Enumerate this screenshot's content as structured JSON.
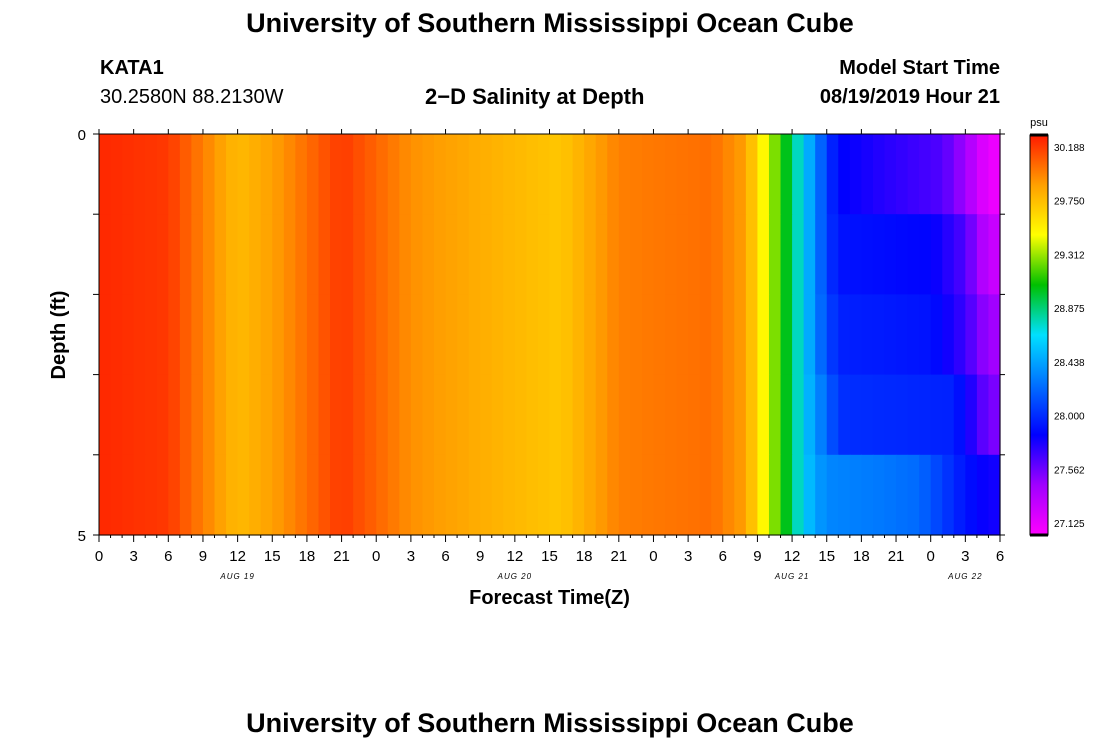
{
  "header": {
    "title": "University of Southern Mississippi Ocean Cube",
    "station": "KATA1",
    "coordinates": "30.2580N 88.2130W",
    "subtitle": "2−D Salinity at Depth",
    "model_start_label": "Model Start Time",
    "model_start_value": "08/19/2019 Hour 21"
  },
  "footer": {
    "title": "University of Southern Mississippi Ocean Cube"
  },
  "colors": {
    "palette": [
      "#ff00ff",
      "#a000ff",
      "#0000ff",
      "#0070ff",
      "#00e0ff",
      "#00c000",
      "#ffff00",
      "#ffa000",
      "#ff1a00"
    ]
  },
  "chart_data": {
    "type": "heatmap",
    "title": "2-D Salinity at Depth",
    "xlabel": "Forecast Time(Z)",
    "ylabel": "Depth (ft)",
    "colorbar_unit": "psu",
    "colorbar_ticks": [
      "30.188",
      "29.750",
      "29.312",
      "28.875",
      "28.438",
      "28.000",
      "27.562",
      "27.125"
    ],
    "vmin": 27.125,
    "vmax": 30.188,
    "y_range": [
      0,
      5
    ],
    "y_tick_labels": [
      "0",
      "5"
    ],
    "x_tick_labels": [
      "0",
      "3",
      "6",
      "9",
      "12",
      "15",
      "18",
      "21",
      "0",
      "3",
      "6",
      "9",
      "12",
      "15",
      "18",
      "21",
      "0",
      "3",
      "6",
      "9",
      "12",
      "15",
      "18",
      "21",
      "0",
      "3",
      "6"
    ],
    "date_labels": [
      {
        "label": "AUG 19",
        "hour": 12
      },
      {
        "label": "AUG 20",
        "hour": 36
      },
      {
        "label": "AUG 21",
        "hour": 60
      },
      {
        "label": "AUG 22",
        "hour": 75
      }
    ],
    "x_range_hours": [
      0,
      78
    ],
    "depth_levels": 5,
    "base_profile": [
      {
        "hour": 0,
        "value": 30.15
      },
      {
        "hour": 6,
        "value": 30.1
      },
      {
        "hour": 12,
        "value": 29.7
      },
      {
        "hour": 15,
        "value": 29.8
      },
      {
        "hour": 21,
        "value": 30.1
      },
      {
        "hour": 27,
        "value": 29.85
      },
      {
        "hour": 33,
        "value": 29.75
      },
      {
        "hour": 40,
        "value": 29.65
      },
      {
        "hour": 45,
        "value": 29.9
      },
      {
        "hour": 53,
        "value": 29.95
      },
      {
        "hour": 56,
        "value": 29.8
      },
      {
        "hour": 57,
        "value": 29.55
      },
      {
        "hour": 58,
        "value": 29.35
      },
      {
        "hour": 59,
        "value": 29.1
      },
      {
        "hour": 60,
        "value": 28.9
      },
      {
        "hour": 61,
        "value": 28.6
      }
    ],
    "tail_by_depth": [
      [
        {
          "hour": 62,
          "value": 28.35
        },
        {
          "hour": 63,
          "value": 28.1
        },
        {
          "hour": 64,
          "value": 27.9
        },
        {
          "hour": 68,
          "value": 27.8
        },
        {
          "hour": 73,
          "value": 27.7
        },
        {
          "hour": 75,
          "value": 27.5
        },
        {
          "hour": 77,
          "value": 27.2
        }
      ],
      [
        {
          "hour": 62,
          "value": 28.35
        },
        {
          "hour": 63,
          "value": 28.1
        },
        {
          "hour": 64,
          "value": 27.95
        },
        {
          "hour": 72,
          "value": 27.9
        },
        {
          "hour": 75,
          "value": 27.7
        },
        {
          "hour": 77,
          "value": 27.35
        }
      ],
      [
        {
          "hour": 62,
          "value": 28.35
        },
        {
          "hour": 63,
          "value": 28.15
        },
        {
          "hour": 64,
          "value": 28.0
        },
        {
          "hour": 72,
          "value": 27.95
        },
        {
          "hour": 75,
          "value": 27.75
        },
        {
          "hour": 77,
          "value": 27.5
        }
      ],
      [
        {
          "hour": 62,
          "value": 28.4
        },
        {
          "hour": 63,
          "value": 28.25
        },
        {
          "hour": 64,
          "value": 28.05
        },
        {
          "hour": 74,
          "value": 28.0
        },
        {
          "hour": 76,
          "value": 27.75
        },
        {
          "hour": 77,
          "value": 27.6
        }
      ],
      [
        {
          "hour": 62,
          "value": 28.45
        },
        {
          "hour": 63,
          "value": 28.35
        },
        {
          "hour": 68,
          "value": 28.3
        },
        {
          "hour": 71,
          "value": 28.25
        },
        {
          "hour": 73,
          "value": 28.1
        },
        {
          "hour": 75,
          "value": 27.95
        },
        {
          "hour": 77,
          "value": 27.85
        }
      ]
    ]
  }
}
